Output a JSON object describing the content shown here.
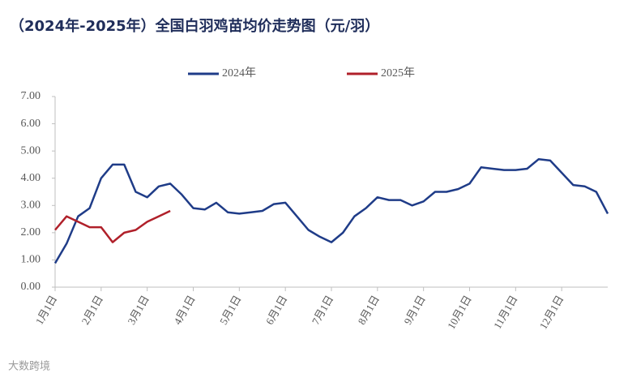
{
  "chart_data": {
    "type": "line",
    "title": "（2024年-2025年）全国白羽鸡苗均价走势图（元/羽）",
    "categories": [
      "1月1日",
      null,
      null,
      null,
      "2月1日",
      null,
      null,
      null,
      "3月1日",
      null,
      null,
      null,
      "4月1日",
      null,
      null,
      null,
      "5月1日",
      null,
      null,
      null,
      "6月1日",
      null,
      null,
      null,
      "7月1日",
      null,
      null,
      null,
      "8月1日",
      null,
      null,
      null,
      "9月1日",
      null,
      null,
      null,
      "10月1日",
      null,
      null,
      null,
      "11月1日",
      null,
      null,
      null,
      "12月1日",
      null,
      null,
      null,
      null
    ],
    "series": [
      {
        "name": "2024年",
        "color": "#1f3c88",
        "values": [
          0.88,
          1.6,
          2.6,
          2.9,
          4.0,
          4.5,
          4.5,
          3.5,
          3.3,
          3.7,
          3.8,
          3.4,
          2.9,
          2.85,
          3.1,
          2.75,
          2.7,
          2.75,
          2.8,
          3.05,
          3.1,
          2.6,
          2.1,
          1.85,
          1.65,
          2.0,
          2.6,
          2.9,
          3.3,
          3.2,
          3.2,
          3.0,
          3.15,
          3.5,
          3.5,
          3.6,
          3.8,
          4.4,
          4.35,
          4.3,
          4.3,
          4.35,
          4.7,
          4.65,
          4.2,
          3.75,
          3.7,
          3.5,
          2.7
        ]
      },
      {
        "name": "2025年",
        "color": "#b0202a",
        "values": [
          2.1,
          2.6,
          2.4,
          2.2,
          2.2,
          1.65,
          2.0,
          2.1,
          2.4,
          2.6,
          2.8,
          null,
          null,
          null,
          null,
          null,
          null,
          null,
          null,
          null,
          null,
          null,
          null,
          null,
          null,
          null,
          null,
          null,
          null,
          null,
          null,
          null,
          null,
          null,
          null,
          null,
          null,
          null,
          null,
          null,
          null,
          null,
          null,
          null,
          null,
          null,
          null,
          null,
          null
        ]
      }
    ],
    "ylim": [
      0,
      7
    ],
    "yticks": [
      {
        "value": 0,
        "label": "0.00"
      },
      {
        "value": 1,
        "label": "1.00"
      },
      {
        "value": 2,
        "label": "2.00"
      },
      {
        "value": 3,
        "label": "3.00"
      },
      {
        "value": 4,
        "label": "4.00"
      },
      {
        "value": 5,
        "label": "5.00"
      },
      {
        "value": 6,
        "label": "6.00"
      },
      {
        "value": 7,
        "label": "7.00"
      }
    ],
    "legend": "top"
  },
  "footer": "大数跨境"
}
